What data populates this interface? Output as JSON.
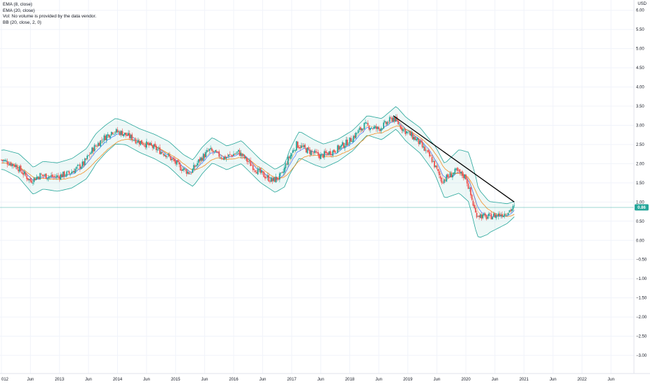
{
  "legend": {
    "lines": [
      "EMA (8, close)",
      "EMA (20, close)",
      "Vol: No volume is provided by the data vendor.",
      "BB (20, close, 2, 0)"
    ]
  },
  "price_axis": {
    "currency": "USD",
    "ticks": [
      "6.00",
      "5.50",
      "5.00",
      "4.50",
      "4.00",
      "3.50",
      "3.00",
      "2.50",
      "2.00",
      "1.50",
      "1.00",
      "0.50",
      "0.00",
      "−0.50",
      "−1.00",
      "−1.50",
      "−2.00",
      "−2.50",
      "−3.00"
    ],
    "last_price_label": "0.86",
    "last_price_value": 0.86
  },
  "time_axis": {
    "labels": [
      "012",
      "Jun",
      "2013",
      "Jun",
      "2014",
      "Jun",
      "2015",
      "Jun",
      "2016",
      "Jun",
      "2017",
      "Jun",
      "2018",
      "Jun",
      "2019",
      "Jun",
      "2020",
      "Jun",
      "2021",
      "Jun",
      "2022",
      "Jun"
    ]
  },
  "colors": {
    "up": "#26a69a",
    "down": "#ef5350",
    "ema8": "#2962ff",
    "ema20": "#f57c00",
    "bb_line": "#26a69a",
    "bb_fill": "#26a69a",
    "trendline": "#000000",
    "price_line": "#26a69a"
  },
  "chart_data": {
    "type": "candlestick",
    "x_range": [
      "2012-01",
      "2022-09"
    ],
    "y_range": [
      -3.2,
      6.05
    ],
    "close_path": [
      {
        "date": "2012-01",
        "value": 2.1
      },
      {
        "date": "2012-04",
        "value": 1.95
      },
      {
        "date": "2012-07",
        "value": 1.55
      },
      {
        "date": "2012-09",
        "value": 1.7
      },
      {
        "date": "2012-12",
        "value": 1.65
      },
      {
        "date": "2013-03",
        "value": 1.75
      },
      {
        "date": "2013-06",
        "value": 2.0
      },
      {
        "date": "2013-08",
        "value": 2.4
      },
      {
        "date": "2013-10",
        "value": 2.65
      },
      {
        "date": "2013-12",
        "value": 2.85
      },
      {
        "date": "2014-02",
        "value": 2.8
      },
      {
        "date": "2014-05",
        "value": 2.6
      },
      {
        "date": "2014-08",
        "value": 2.45
      },
      {
        "date": "2014-11",
        "value": 2.25
      },
      {
        "date": "2015-02",
        "value": 1.9
      },
      {
        "date": "2015-04",
        "value": 1.75
      },
      {
        "date": "2015-06",
        "value": 2.1
      },
      {
        "date": "2015-08",
        "value": 2.35
      },
      {
        "date": "2015-11",
        "value": 2.15
      },
      {
        "date": "2016-02",
        "value": 2.3
      },
      {
        "date": "2016-04",
        "value": 2.05
      },
      {
        "date": "2016-06",
        "value": 1.8
      },
      {
        "date": "2016-09",
        "value": 1.55
      },
      {
        "date": "2016-11",
        "value": 1.7
      },
      {
        "date": "2016-12",
        "value": 2.05
      },
      {
        "date": "2017-02",
        "value": 2.5
      },
      {
        "date": "2017-05",
        "value": 2.3
      },
      {
        "date": "2017-07",
        "value": 2.2
      },
      {
        "date": "2017-10",
        "value": 2.35
      },
      {
        "date": "2018-01",
        "value": 2.6
      },
      {
        "date": "2018-04",
        "value": 3.0
      },
      {
        "date": "2018-07",
        "value": 2.9
      },
      {
        "date": "2018-10",
        "value": 3.2
      },
      {
        "date": "2018-12",
        "value": 2.9
      },
      {
        "date": "2019-03",
        "value": 2.6
      },
      {
        "date": "2019-06",
        "value": 2.1
      },
      {
        "date": "2019-08",
        "value": 1.55
      },
      {
        "date": "2019-11",
        "value": 1.8
      },
      {
        "date": "2020-01",
        "value": 1.65
      },
      {
        "date": "2020-03",
        "value": 0.7
      },
      {
        "date": "2020-05",
        "value": 0.6
      },
      {
        "date": "2020-07",
        "value": 0.65
      },
      {
        "date": "2020-09",
        "value": 0.7
      },
      {
        "date": "2020-11",
        "value": 0.86
      }
    ],
    "ema_offsets": {
      "ema8": -0.02,
      "ema20": -0.08
    },
    "bollinger_half_width": [
      {
        "date": "2012-01",
        "value": 0.25
      },
      {
        "date": "2012-07",
        "value": 0.35
      },
      {
        "date": "2013-08",
        "value": 0.4
      },
      {
        "date": "2014-03",
        "value": 0.3
      },
      {
        "date": "2015-06",
        "value": 0.35
      },
      {
        "date": "2016-01",
        "value": 0.3
      },
      {
        "date": "2016-12",
        "value": 0.3
      },
      {
        "date": "2017-02",
        "value": 0.35
      },
      {
        "date": "2018-04",
        "value": 0.25
      },
      {
        "date": "2019-06",
        "value": 0.35
      },
      {
        "date": "2020-03",
        "value": 0.7
      },
      {
        "date": "2020-06",
        "value": 0.4
      },
      {
        "date": "2020-11",
        "value": 0.2
      }
    ],
    "trendline": {
      "from": {
        "date": "2018-10",
        "value": 3.25
      },
      "to": {
        "date": "2020-11",
        "value": 1.0
      }
    },
    "last_price": 0.86
  }
}
